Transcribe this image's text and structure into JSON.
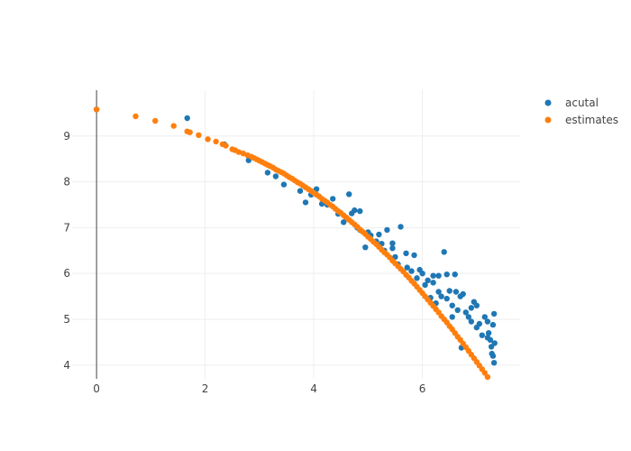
{
  "chart_data": {
    "type": "scatter",
    "title": "",
    "xlabel": "",
    "ylabel": "",
    "xlim": [
      -0.45,
      7.8
    ],
    "ylim": [
      3.7,
      10.0
    ],
    "xticks": [
      0,
      2,
      4,
      6
    ],
    "yticks": [
      4,
      5,
      6,
      7,
      8,
      9
    ],
    "grid": true,
    "legend_position": "top-right",
    "series": [
      {
        "name": "acutal",
        "color": "#1f77b4",
        "x": [
          0,
          1.67,
          2.35,
          2.8,
          3.15,
          3.3,
          3.45,
          3.75,
          3.85,
          3.95,
          4.05,
          4.15,
          4.25,
          4.35,
          4.45,
          4.55,
          4.65,
          4.7,
          4.75,
          4.8,
          4.85,
          4.95,
          5.0,
          5.05,
          5.15,
          5.25,
          5.3,
          5.35,
          5.45,
          5.5,
          5.55,
          5.6,
          5.7,
          5.72,
          5.8,
          5.85,
          5.9,
          5.95,
          6.0,
          6.05,
          6.1,
          6.15,
          6.2,
          6.25,
          6.3,
          6.35,
          6.4,
          6.45,
          6.45,
          6.5,
          6.55,
          6.6,
          6.62,
          6.65,
          6.7,
          6.72,
          6.75,
          6.8,
          6.85,
          6.9,
          6.95,
          7.0,
          7.05,
          7.1,
          7.15,
          7.2,
          7.22,
          7.25,
          7.27,
          7.28,
          7.3,
          7.3,
          7.32,
          7.32,
          7.33,
          6.3,
          6.9,
          7.0,
          7.2,
          6.55,
          6.2,
          5.45,
          4.6,
          4.85,
          5.2
        ],
        "y": [
          9.58,
          9.39,
          8.82,
          8.47,
          8.2,
          8.12,
          7.94,
          7.8,
          7.55,
          7.72,
          7.84,
          7.52,
          7.5,
          7.63,
          7.3,
          7.12,
          7.73,
          7.31,
          7.38,
          7.0,
          7.36,
          6.57,
          6.9,
          6.83,
          6.7,
          6.65,
          6.5,
          6.95,
          6.66,
          6.36,
          6.2,
          7.02,
          6.44,
          6.13,
          6.05,
          6.4,
          5.9,
          6.08,
          6.0,
          5.75,
          5.85,
          5.47,
          5.95,
          5.35,
          5.6,
          5.5,
          6.47,
          5.98,
          5.45,
          5.62,
          5.3,
          5.98,
          5.6,
          5.2,
          5.5,
          4.38,
          5.55,
          5.15,
          5.05,
          4.95,
          5.38,
          4.82,
          4.9,
          4.65,
          5.05,
          4.6,
          4.7,
          4.55,
          4.4,
          4.25,
          4.2,
          4.88,
          5.12,
          4.05,
          4.48,
          5.95,
          5.25,
          5.3,
          4.95,
          5.05,
          5.8,
          6.55,
          7.2,
          6.95,
          6.85
        ]
      },
      {
        "name": "estimates",
        "color": "#ff7f0e",
        "x": [
          0,
          0.72,
          1.08,
          1.42,
          1.67,
          1.72,
          1.88,
          2.05,
          2.2,
          2.32,
          2.38,
          2.5,
          2.55,
          2.62,
          2.7,
          2.78,
          2.85,
          2.9,
          2.95,
          3.0,
          3.05,
          3.1,
          3.15,
          3.2,
          3.25,
          3.3,
          3.35,
          3.4,
          3.45,
          3.5,
          3.55,
          3.6,
          3.65,
          3.7,
          3.75,
          3.8,
          3.85,
          3.9,
          3.95,
          4.0,
          4.05,
          4.1,
          4.15,
          4.2,
          4.25,
          4.3,
          4.35,
          4.4,
          4.45,
          4.5,
          4.55,
          4.6,
          4.65,
          4.7,
          4.75,
          4.8,
          4.85,
          4.9,
          4.95,
          5.0,
          5.05,
          5.1,
          5.15,
          5.2,
          5.25,
          5.3,
          5.35,
          5.4,
          5.45,
          5.5,
          5.55,
          5.6,
          5.65,
          5.7,
          5.75,
          5.8,
          5.85,
          5.9,
          5.95,
          6.0,
          6.05,
          6.1,
          6.15,
          6.2,
          6.25,
          6.3,
          6.35,
          6.4,
          6.45,
          6.5,
          6.55,
          6.6,
          6.65,
          6.7,
          6.75,
          6.8,
          6.85,
          6.9,
          6.95,
          7.0,
          7.05,
          7.1,
          7.15,
          7.2,
          7.25,
          7.3,
          7.33
        ],
        "y": [
          9.58,
          9.43,
          9.33,
          9.22,
          9.1,
          9.08,
          9.02,
          8.93,
          8.88,
          8.82,
          8.79,
          8.71,
          8.69,
          8.65,
          8.62,
          8.58,
          8.55,
          8.52,
          8.49,
          8.46,
          8.43,
          8.4,
          8.37,
          8.34,
          8.31,
          8.27,
          8.24,
          8.21,
          8.18,
          8.14,
          8.1,
          8.07,
          8.03,
          7.99,
          7.96,
          7.92,
          7.88,
          7.84,
          7.8,
          7.76,
          7.72,
          7.68,
          7.63,
          7.59,
          7.55,
          7.5,
          7.46,
          7.41,
          7.36,
          7.32,
          7.27,
          7.22,
          7.17,
          7.12,
          7.07,
          7.02,
          6.96,
          6.91,
          6.86,
          6.8,
          6.75,
          6.69,
          6.64,
          6.58,
          6.52,
          6.46,
          6.41,
          6.35,
          6.28,
          6.22,
          6.16,
          6.1,
          6.04,
          5.97,
          5.91,
          5.84,
          5.78,
          5.71,
          5.64,
          5.57,
          5.5,
          5.43,
          5.36,
          5.29,
          5.22,
          5.15,
          5.07,
          5.0,
          4.93,
          4.85,
          4.78,
          4.7,
          4.62,
          4.55,
          4.47,
          4.39,
          4.31,
          4.23,
          4.15,
          4.07,
          3.99,
          3.91,
          3.83,
          3.74,
          3.66,
          3.58,
          3.53
        ]
      }
    ]
  }
}
